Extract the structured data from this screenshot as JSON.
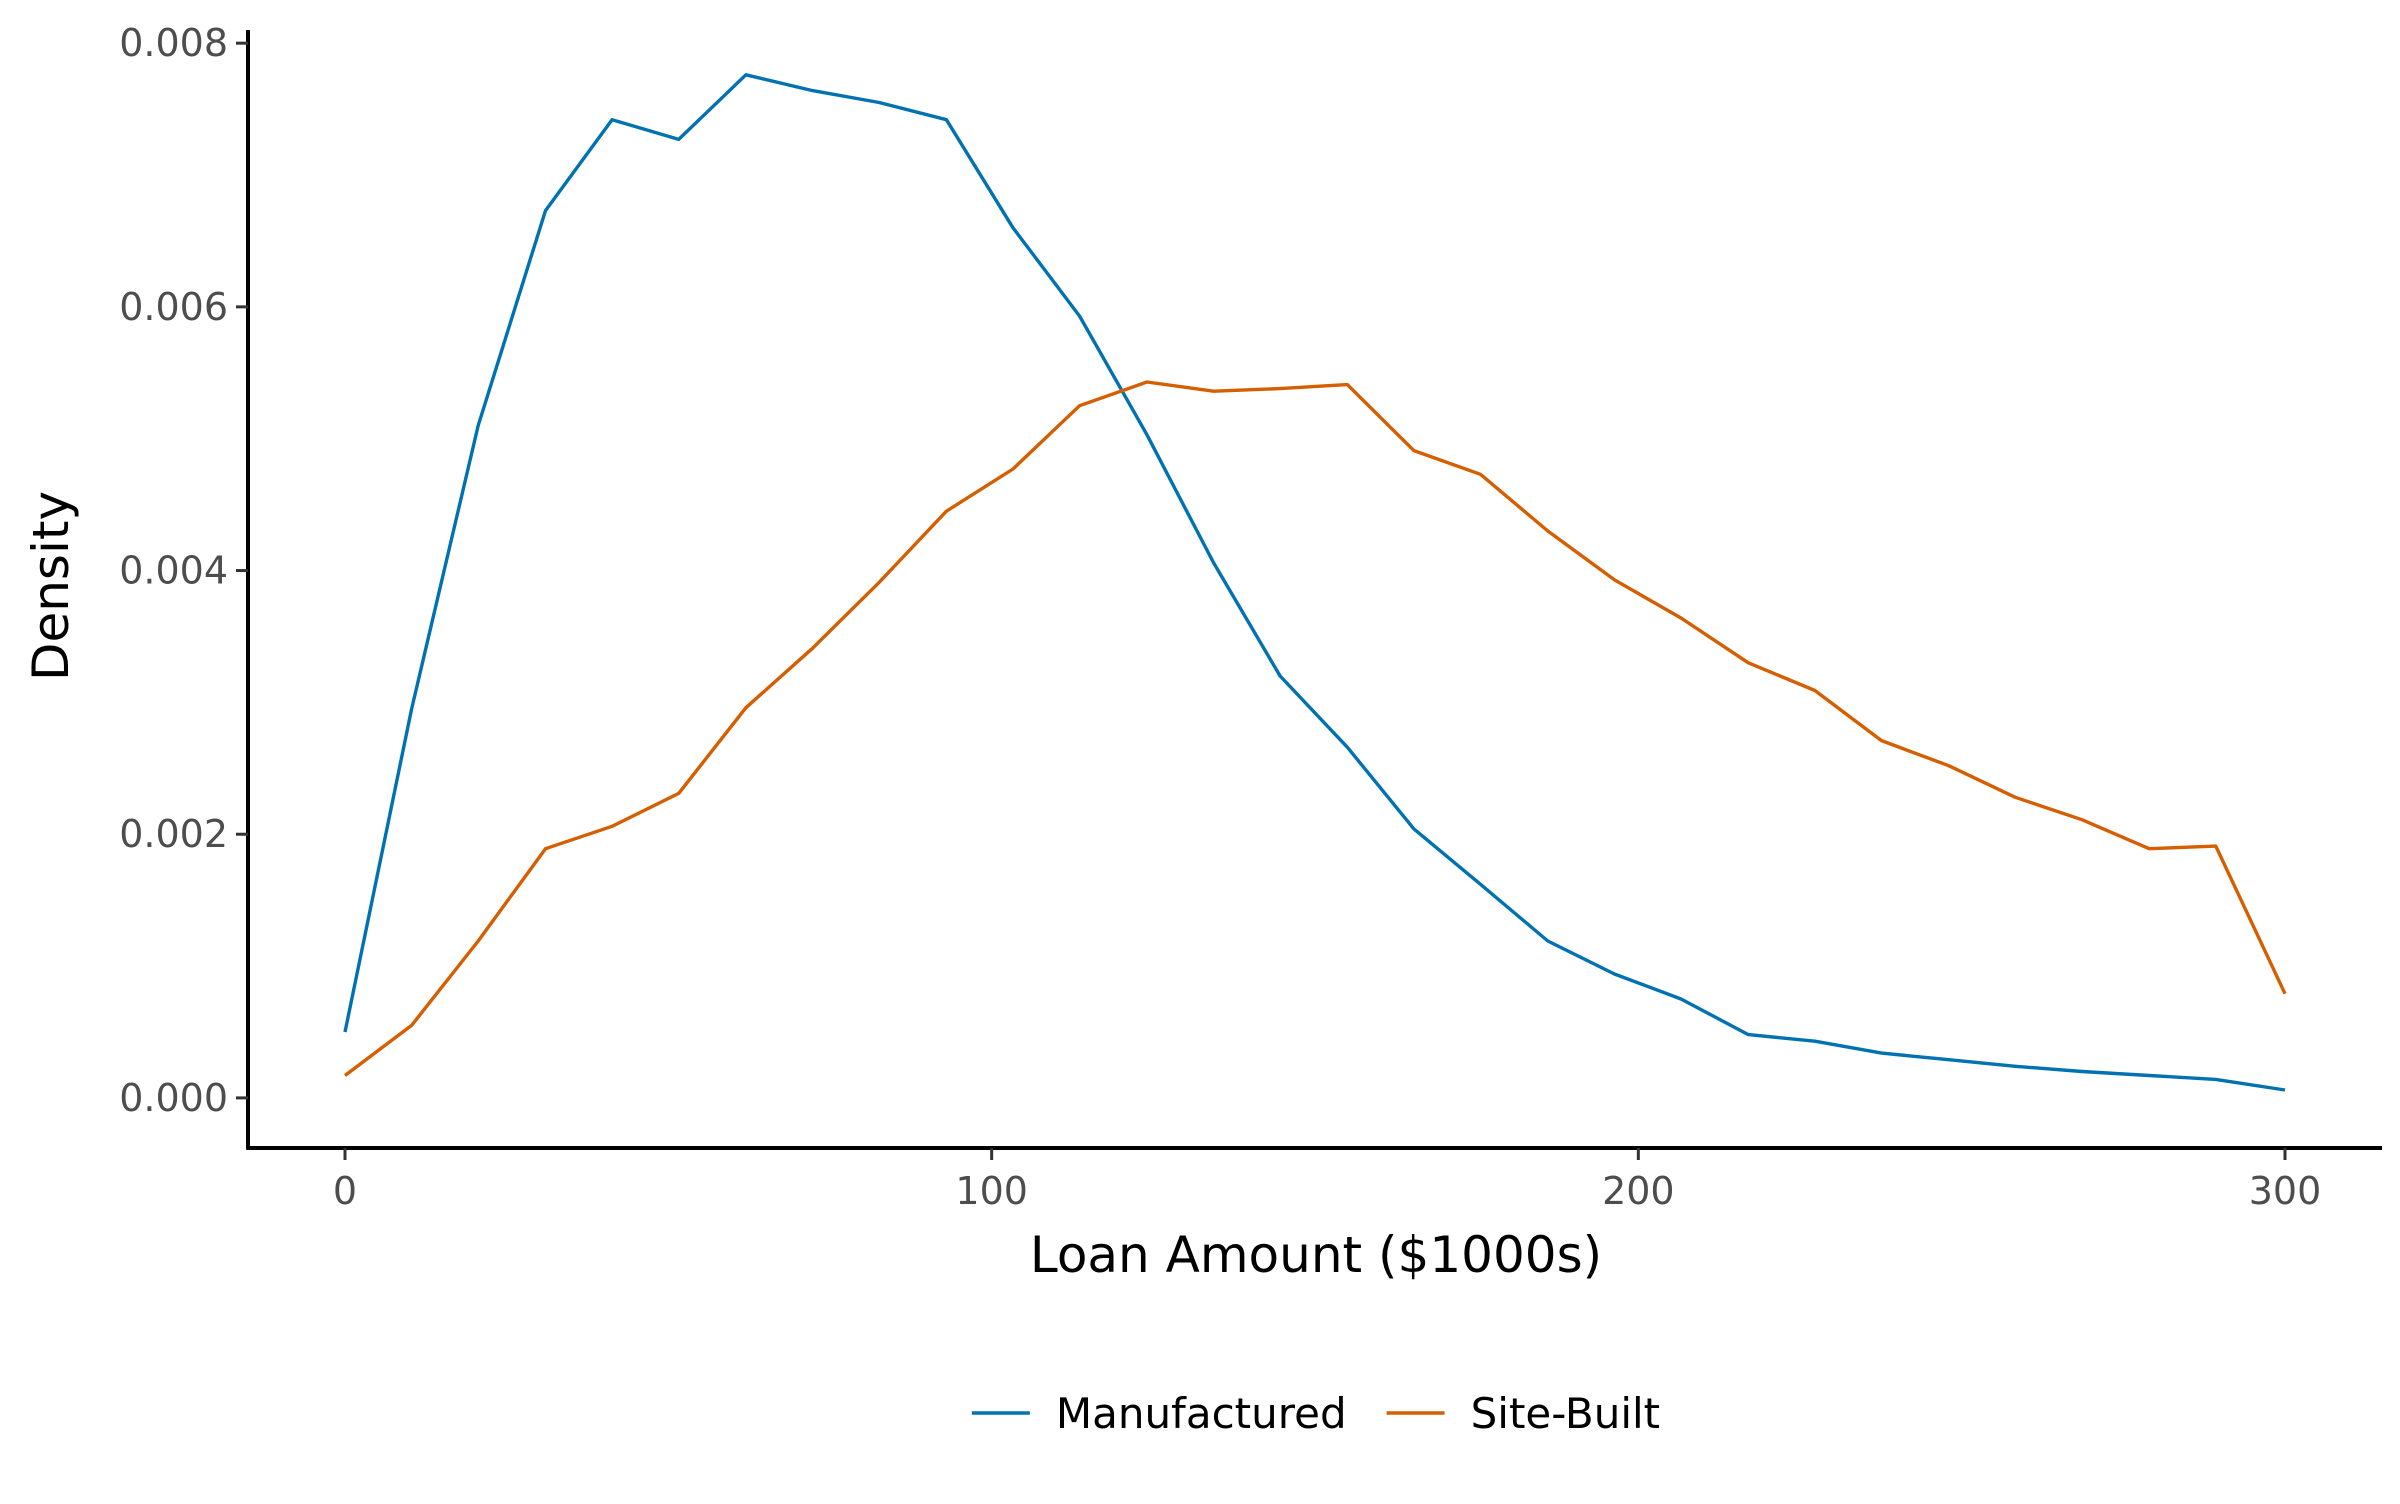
{
  "chart_data": {
    "type": "line",
    "xlabel": "Loan Amount ($1000s)",
    "ylabel": "Density",
    "xlim": [
      -15,
      315
    ],
    "ylim": [
      -0.00038,
      0.0081
    ],
    "x_ticks": [
      0,
      100,
      200,
      300
    ],
    "x_tick_labels": [
      "0",
      "100",
      "200",
      "300"
    ],
    "y_ticks": [
      0,
      0.002,
      0.004,
      0.006,
      0.008
    ],
    "y_tick_labels": [
      "0.000",
      "0.002",
      "0.004",
      "0.006",
      "0.008"
    ],
    "grid": false,
    "legend_position": "bottom",
    "x": [
      0,
      10.3,
      20.6,
      31,
      41.3,
      51.6,
      62,
      72.3,
      82.6,
      93,
      103.3,
      113.6,
      124,
      134.3,
      144.6,
      155,
      165.3,
      175.6,
      186,
      196.3,
      206.6,
      217,
      227.3,
      237.6,
      248,
      258.3,
      268.6,
      279,
      289.3,
      300
    ],
    "series": [
      {
        "name": "Manufactured",
        "color": "#0072B2",
        "values": [
          0.0005,
          0.00295,
          0.0051,
          0.00673,
          0.00742,
          0.00727,
          0.00776,
          0.00764,
          0.00755,
          0.00742,
          0.0066,
          0.00593,
          0.00503,
          0.00406,
          0.0032,
          0.00266,
          0.00204,
          0.00162,
          0.00119,
          0.00094,
          0.00075,
          0.00048,
          0.00043,
          0.00034,
          0.00029,
          0.00024,
          0.0002,
          0.00017,
          0.00014,
          6e-05
        ]
      },
      {
        "name": "Site-Built",
        "color": "#D55E00",
        "values": [
          0.00017,
          0.00055,
          0.00119,
          0.00189,
          0.00206,
          0.00231,
          0.00296,
          0.00341,
          0.00391,
          0.00445,
          0.00477,
          0.00525,
          0.00543,
          0.00536,
          0.00538,
          0.00541,
          0.00491,
          0.00473,
          0.0043,
          0.00393,
          0.00364,
          0.0033,
          0.00309,
          0.00271,
          0.00252,
          0.00228,
          0.00211,
          0.00189,
          0.00191,
          0.00079
        ]
      }
    ]
  }
}
